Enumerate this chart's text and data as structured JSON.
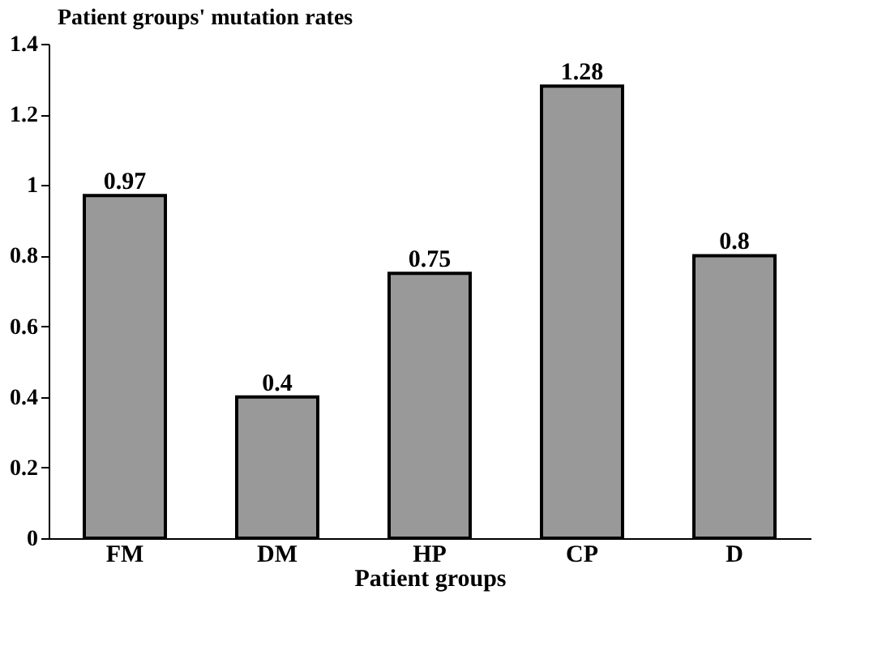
{
  "chart_data": {
    "type": "bar",
    "title": "Patient groups' mutation rates",
    "xlabel": "Patient groups",
    "categories": [
      "FM",
      "DM",
      "HP",
      "CP",
      "D"
    ],
    "values": [
      0.97,
      0.4,
      0.75,
      1.28,
      0.8
    ],
    "color": "#999999",
    "ylim": [
      0,
      1.4
    ],
    "yticks": [
      0,
      0.2,
      0.4,
      0.6,
      0.8,
      1,
      1.2,
      1.4
    ],
    "grid": false,
    "data_labels": true
  }
}
